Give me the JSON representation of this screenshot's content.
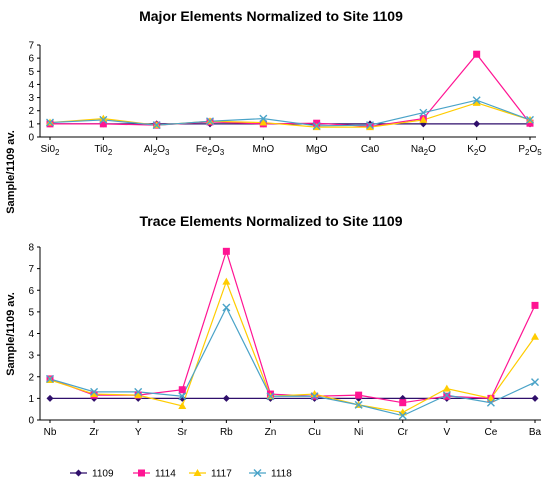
{
  "chart_data": [
    {
      "type": "line",
      "title": "Major Elements Normalized to Site 1109",
      "ylabel": "Sample/1109 av.",
      "xlabel": "",
      "ylim": [
        0,
        7
      ],
      "yticks": [
        0,
        1,
        2,
        3,
        4,
        5,
        6,
        7
      ],
      "categories": [
        {
          "base": "Si0",
          "sub": "2",
          "tail": ""
        },
        {
          "base": "Ti0",
          "sub": "2",
          "tail": ""
        },
        {
          "base": "Al",
          "sub": "2",
          "tail": "O",
          "sub2": "3"
        },
        {
          "base": "Fe",
          "sub": "2",
          "tail": "O",
          "sub2": "3"
        },
        {
          "base": "MnO",
          "sub": "",
          "tail": ""
        },
        {
          "base": "MgO",
          "sub": "",
          "tail": ""
        },
        {
          "base": "Ca0",
          "sub": "",
          "tail": ""
        },
        {
          "base": "Na",
          "sub": "2",
          "tail": "O"
        },
        {
          "base": "K",
          "sub": "2",
          "tail": "O"
        },
        {
          "base": "P",
          "sub": "2",
          "tail": "O",
          "sub2": "5"
        }
      ],
      "grid": false,
      "series": [
        {
          "name": "1109",
          "values": [
            1,
            1,
            1,
            1,
            1,
            1,
            1,
            1,
            1,
            1
          ]
        },
        {
          "name": "1114",
          "values": [
            1.0,
            1.0,
            0.9,
            1.15,
            1.0,
            1.05,
            0.8,
            1.4,
            6.3,
            1.05
          ]
        },
        {
          "name": "1117",
          "values": [
            1.1,
            1.4,
            0.9,
            1.2,
            1.1,
            0.75,
            0.75,
            1.3,
            2.6,
            1.3
          ]
        },
        {
          "name": "1118",
          "values": [
            1.1,
            1.3,
            0.9,
            1.2,
            1.4,
            0.85,
            0.9,
            1.85,
            2.8,
            1.3
          ]
        }
      ]
    },
    {
      "type": "line",
      "title": "Trace Elements Normalized to Site 1109",
      "ylabel": "Sample/1109 av.",
      "xlabel": "",
      "ylim": [
        0,
        8
      ],
      "yticks": [
        0,
        1,
        2,
        3,
        4,
        5,
        6,
        7,
        8
      ],
      "categories": [
        {
          "base": "Nb"
        },
        {
          "base": "Zr"
        },
        {
          "base": "Y"
        },
        {
          "base": "Sr"
        },
        {
          "base": "Rb"
        },
        {
          "base": "Zn"
        },
        {
          "base": "Cu"
        },
        {
          "base": "Ni"
        },
        {
          "base": "Cr"
        },
        {
          "base": "V"
        },
        {
          "base": "Ce"
        },
        {
          "base": "Ba"
        }
      ],
      "grid": false,
      "series": [
        {
          "name": "1109",
          "values": [
            1,
            1,
            1,
            1,
            1,
            1,
            1,
            1,
            1,
            1,
            1,
            1
          ]
        },
        {
          "name": "1114",
          "values": [
            1.9,
            1.15,
            1.15,
            1.4,
            7.8,
            1.2,
            1.1,
            1.15,
            0.8,
            1.1,
            1.0,
            5.3
          ]
        },
        {
          "name": "1117",
          "values": [
            1.85,
            1.2,
            1.15,
            0.65,
            6.4,
            1.1,
            1.2,
            0.7,
            0.35,
            1.45,
            1.0,
            3.85
          ]
        },
        {
          "name": "1118",
          "values": [
            1.9,
            1.3,
            1.3,
            1.1,
            5.2,
            1.1,
            1.1,
            0.7,
            0.2,
            1.15,
            0.8,
            1.75
          ]
        }
      ]
    }
  ],
  "legend": {
    "position": "bottom",
    "items": [
      {
        "label": "1109",
        "color": "#2f0f6b",
        "marker": "diamond"
      },
      {
        "label": "1114",
        "color": "#ff1493",
        "marker": "square"
      },
      {
        "label": "1117",
        "color": "#ffcc00",
        "marker": "triangle"
      },
      {
        "label": "1118",
        "color": "#4aa3c8",
        "marker": "x"
      }
    ]
  }
}
